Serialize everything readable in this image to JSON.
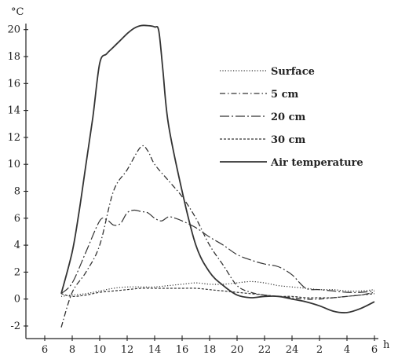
{
  "chart_data": {
    "type": "line",
    "y_unit": "°C",
    "x_unit": "h",
    "x_ticks": [
      "6",
      "8",
      "10",
      "12",
      "14",
      "16",
      "18",
      "20",
      "22",
      "24",
      "2",
      "4",
      "6"
    ],
    "y_ticks": [
      "-2",
      "0",
      "2",
      "4",
      "6",
      "8",
      "10",
      "12",
      "14",
      "16",
      "18",
      "20"
    ],
    "xlim": [
      6,
      30
    ],
    "ylim": [
      -3,
      21
    ],
    "legend_position": "upper-right",
    "series": [
      {
        "name": "Surface",
        "style": "dotted",
        "points": [
          [
            7.2,
            0.2
          ],
          [
            8,
            0.3
          ],
          [
            9,
            0.4
          ],
          [
            10,
            0.6
          ],
          [
            11,
            0.8
          ],
          [
            12,
            0.9
          ],
          [
            13,
            0.9
          ],
          [
            14,
            0.9
          ],
          [
            15,
            1.0
          ],
          [
            16,
            1.1
          ],
          [
            17,
            1.2
          ],
          [
            18,
            1.1
          ],
          [
            19,
            1.1
          ],
          [
            20,
            1.2
          ],
          [
            21,
            1.3
          ],
          [
            22,
            1.2
          ],
          [
            23,
            1.0
          ],
          [
            24,
            0.9
          ],
          [
            25,
            0.8
          ],
          [
            26,
            0.7
          ],
          [
            27,
            0.7
          ],
          [
            28,
            0.6
          ],
          [
            29,
            0.6
          ],
          [
            30,
            0.7
          ]
        ]
      },
      {
        "name": "5 cm",
        "style": "dash-dot",
        "points": [
          [
            7.2,
            -2.1
          ],
          [
            8,
            0.5
          ],
          [
            9,
            2.0
          ],
          [
            10,
            4.0
          ],
          [
            11,
            8.0
          ],
          [
            12,
            9.6
          ],
          [
            13,
            11.3
          ],
          [
            13.5,
            11.0
          ],
          [
            14,
            10.0
          ],
          [
            15,
            8.8
          ],
          [
            16,
            7.6
          ],
          [
            17,
            6.0
          ],
          [
            18,
            4.0
          ],
          [
            19,
            2.5
          ],
          [
            20,
            1.0
          ],
          [
            21,
            0.5
          ],
          [
            22,
            0.3
          ],
          [
            23,
            0.2
          ],
          [
            24,
            0.1
          ],
          [
            25,
            0.0
          ],
          [
            26,
            0.0
          ],
          [
            27,
            0.1
          ],
          [
            28,
            0.2
          ],
          [
            29,
            0.3
          ],
          [
            30,
            0.5
          ]
        ]
      },
      {
        "name": "20 cm",
        "style": "long-dash-dot",
        "points": [
          [
            7.2,
            0.4
          ],
          [
            8,
            1.2
          ],
          [
            9,
            3.5
          ],
          [
            10,
            5.8
          ],
          [
            10.5,
            5.9
          ],
          [
            11,
            5.5
          ],
          [
            11.5,
            5.6
          ],
          [
            12,
            6.4
          ],
          [
            12.5,
            6.6
          ],
          [
            13,
            6.5
          ],
          [
            13.5,
            6.4
          ],
          [
            14,
            6.0
          ],
          [
            14.5,
            5.8
          ],
          [
            15,
            6.1
          ],
          [
            15.5,
            6.0
          ],
          [
            16,
            5.8
          ],
          [
            17,
            5.3
          ],
          [
            18,
            4.6
          ],
          [
            19,
            4.0
          ],
          [
            20,
            3.3
          ],
          [
            21,
            2.9
          ],
          [
            22,
            2.6
          ],
          [
            23,
            2.4
          ],
          [
            24,
            1.8
          ],
          [
            25,
            0.8
          ],
          [
            26,
            0.7
          ],
          [
            27,
            0.6
          ],
          [
            28,
            0.5
          ],
          [
            29,
            0.5
          ],
          [
            30,
            0.6
          ]
        ]
      },
      {
        "name": "30 cm",
        "style": "dashed",
        "points": [
          [
            7.2,
            0.4
          ],
          [
            8,
            0.2
          ],
          [
            9,
            0.3
          ],
          [
            10,
            0.5
          ],
          [
            11,
            0.6
          ],
          [
            12,
            0.7
          ],
          [
            13,
            0.8
          ],
          [
            14,
            0.8
          ],
          [
            15,
            0.8
          ],
          [
            16,
            0.8
          ],
          [
            17,
            0.8
          ],
          [
            18,
            0.7
          ],
          [
            19,
            0.6
          ],
          [
            20,
            0.5
          ],
          [
            21,
            0.4
          ],
          [
            22,
            0.3
          ],
          [
            23,
            0.2
          ],
          [
            24,
            0.2
          ],
          [
            25,
            0.1
          ],
          [
            26,
            0.1
          ],
          [
            27,
            0.1
          ],
          [
            28,
            0.2
          ],
          [
            29,
            0.3
          ],
          [
            30,
            0.4
          ]
        ]
      },
      {
        "name": "Air temperature",
        "style": "solid",
        "points": [
          [
            7.2,
            0.4
          ],
          [
            8,
            3.5
          ],
          [
            8.5,
            6.5
          ],
          [
            9,
            10.0
          ],
          [
            9.5,
            13.5
          ],
          [
            10,
            17.5
          ],
          [
            10.5,
            18.2
          ],
          [
            11,
            18.7
          ],
          [
            11.5,
            19.2
          ],
          [
            12,
            19.7
          ],
          [
            12.5,
            20.1
          ],
          [
            13,
            20.3
          ],
          [
            13.5,
            20.3
          ],
          [
            14,
            20.2
          ],
          [
            14.3,
            19.9
          ],
          [
            14.6,
            17.0
          ],
          [
            15,
            13.0
          ],
          [
            16,
            8.0
          ],
          [
            17,
            4.0
          ],
          [
            18,
            2.0
          ],
          [
            19,
            1.0
          ],
          [
            20,
            0.3
          ],
          [
            21,
            0.1
          ],
          [
            22,
            0.2
          ],
          [
            23,
            0.2
          ],
          [
            24,
            0.0
          ],
          [
            25,
            -0.2
          ],
          [
            26,
            -0.5
          ],
          [
            27,
            -0.9
          ],
          [
            28,
            -1.0
          ],
          [
            29,
            -0.7
          ],
          [
            30,
            -0.2
          ]
        ]
      }
    ]
  }
}
